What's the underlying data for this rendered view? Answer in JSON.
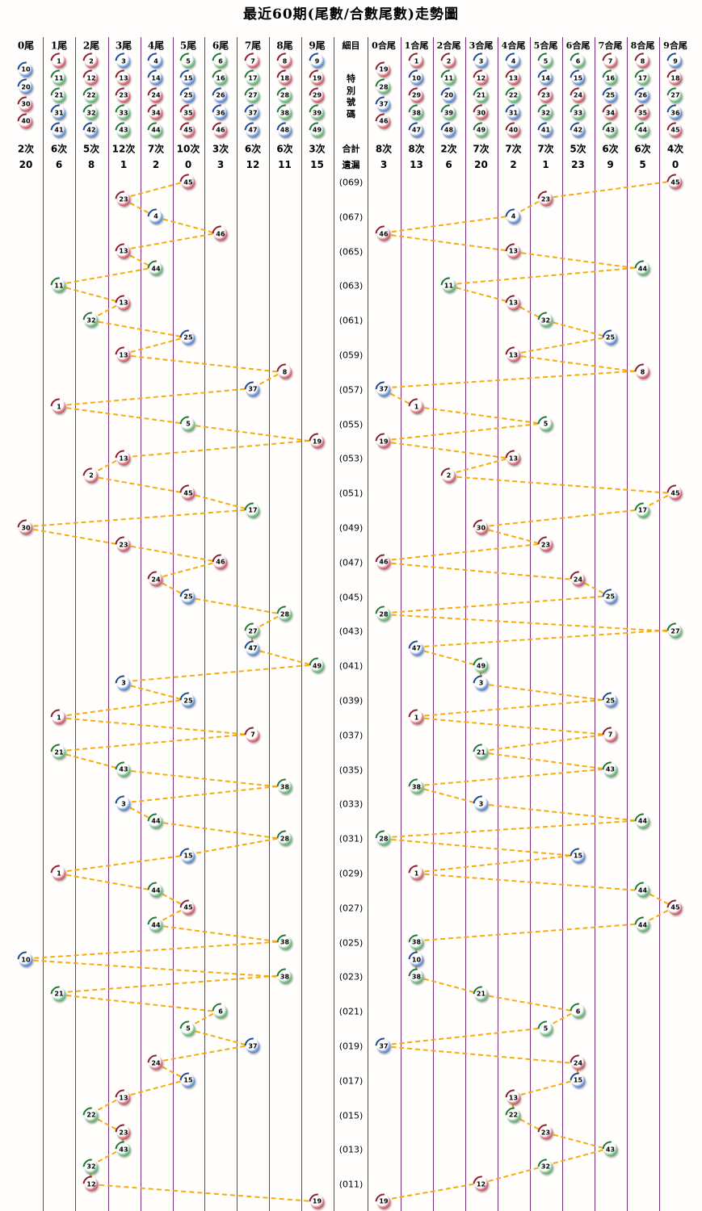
{
  "title": "最近60期(尾數/合數尾數)走勢圖",
  "middle_column": {
    "header": "細目",
    "special_number_label_chars": [
      "特",
      "別",
      "號",
      "碼"
    ],
    "total_label": "合計",
    "miss_label": "遺漏"
  },
  "left_section": {
    "headers": [
      "0尾",
      "1尾",
      "2尾",
      "3尾",
      "4尾",
      "5尾",
      "6尾",
      "7尾",
      "8尾",
      "9尾"
    ],
    "palette": [
      [
        10,
        20,
        30,
        40
      ],
      [
        1,
        11,
        21,
        31,
        41
      ],
      [
        2,
        12,
        22,
        32,
        42
      ],
      [
        3,
        13,
        23,
        33,
        43
      ],
      [
        4,
        14,
        24,
        34,
        44
      ],
      [
        5,
        15,
        25,
        35,
        45
      ],
      [
        6,
        16,
        26,
        36,
        46
      ],
      [
        7,
        17,
        27,
        37,
        47
      ],
      [
        8,
        18,
        28,
        38,
        48
      ],
      [
        9,
        19,
        29,
        39,
        49
      ]
    ],
    "counts": [
      "2次",
      "6次",
      "5次",
      "12次",
      "7次",
      "10次",
      "3次",
      "6次",
      "6次",
      "3次"
    ],
    "misses": [
      "20",
      "6",
      "8",
      "1",
      "2",
      "0",
      "3",
      "12",
      "11",
      "15"
    ]
  },
  "right_section": {
    "headers": [
      "0合尾",
      "1合尾",
      "2合尾",
      "3合尾",
      "4合尾",
      "5合尾",
      "6合尾",
      "7合尾",
      "8合尾",
      "9合尾"
    ],
    "palette": [
      [
        19,
        28,
        37,
        46
      ],
      [
        1,
        10,
        29,
        38,
        47
      ],
      [
        2,
        11,
        20,
        39,
        48
      ],
      [
        3,
        12,
        21,
        30,
        49
      ],
      [
        4,
        13,
        22,
        31,
        40
      ],
      [
        5,
        14,
        23,
        32,
        41
      ],
      [
        6,
        15,
        24,
        33,
        42
      ],
      [
        7,
        16,
        25,
        34,
        43
      ],
      [
        8,
        17,
        26,
        35,
        44
      ],
      [
        9,
        18,
        27,
        36,
        45
      ]
    ],
    "counts": [
      "8次",
      "8次",
      "2次",
      "7次",
      "7次",
      "7次",
      "5次",
      "6次",
      "6次",
      "4次"
    ],
    "misses": [
      "3",
      "13",
      "6",
      "20",
      "2",
      "1",
      "23",
      "9",
      "5",
      "0"
    ]
  },
  "ball_colors": {
    "red": [
      1,
      2,
      7,
      8,
      12,
      13,
      18,
      19,
      23,
      24,
      29,
      30,
      34,
      35,
      40,
      45,
      46
    ],
    "blue": [
      3,
      4,
      9,
      10,
      14,
      15,
      20,
      25,
      26,
      31,
      36,
      37,
      41,
      42,
      47,
      48
    ],
    "green": [
      5,
      6,
      11,
      16,
      17,
      21,
      22,
      27,
      28,
      32,
      33,
      38,
      39,
      43,
      44,
      49
    ]
  },
  "theme": {
    "red": "#b32e3e",
    "blue": "#2d62b8",
    "green": "#2f9a47",
    "connector_line": "#f5a800",
    "grid_line": "#7b3083",
    "background": "#fffefd",
    "text": "#000000"
  },
  "chart_data": {
    "type": "scatter",
    "title": "最近60期(尾數/合數尾數)走勢圖",
    "description": "Special-number trend for the last 60 draws, newest (period 069) at top, oldest (010) at bottom. Left half plots the number by its tail digit (0尾-9尾); right half plots it by the tail of its digit sum (0合尾-9合尾). Consecutive draws are joined by dashed lines. Row labels are shown for odd periods only, formatted like (069).",
    "left_axis_columns": [
      "0尾",
      "1尾",
      "2尾",
      "3尾",
      "4尾",
      "5尾",
      "6尾",
      "7尾",
      "8尾",
      "9尾"
    ],
    "right_axis_columns": [
      "0合尾",
      "1合尾",
      "2合尾",
      "3合尾",
      "4合尾",
      "5合尾",
      "6合尾",
      "7合尾",
      "8合尾",
      "9合尾"
    ],
    "draws": [
      [
        69,
        45
      ],
      [
        68,
        23
      ],
      [
        67,
        4
      ],
      [
        66,
        46
      ],
      [
        65,
        13
      ],
      [
        64,
        44
      ],
      [
        63,
        11
      ],
      [
        62,
        13
      ],
      [
        61,
        32
      ],
      [
        60,
        25
      ],
      [
        59,
        13
      ],
      [
        58,
        8
      ],
      [
        57,
        37
      ],
      [
        56,
        1
      ],
      [
        55,
        5
      ],
      [
        54,
        19
      ],
      [
        53,
        13
      ],
      [
        52,
        2
      ],
      [
        51,
        45
      ],
      [
        50,
        17
      ],
      [
        49,
        30
      ],
      [
        48,
        23
      ],
      [
        47,
        46
      ],
      [
        46,
        24
      ],
      [
        45,
        25
      ],
      [
        44,
        28
      ],
      [
        43,
        27
      ],
      [
        42,
        47
      ],
      [
        41,
        49
      ],
      [
        40,
        3
      ],
      [
        39,
        25
      ],
      [
        38,
        1
      ],
      [
        37,
        7
      ],
      [
        36,
        21
      ],
      [
        35,
        43
      ],
      [
        34,
        38
      ],
      [
        33,
        3
      ],
      [
        32,
        44
      ],
      [
        31,
        28
      ],
      [
        30,
        15
      ],
      [
        29,
        1
      ],
      [
        28,
        44
      ],
      [
        27,
        45
      ],
      [
        26,
        44
      ],
      [
        25,
        38
      ],
      [
        24,
        10
      ],
      [
        23,
        38
      ],
      [
        22,
        21
      ],
      [
        21,
        6
      ],
      [
        20,
        5
      ],
      [
        19,
        37
      ],
      [
        18,
        24
      ],
      [
        17,
        15
      ],
      [
        16,
        13
      ],
      [
        15,
        22
      ],
      [
        14,
        23
      ],
      [
        13,
        43
      ],
      [
        12,
        32
      ],
      [
        11,
        12
      ],
      [
        10,
        19
      ]
    ]
  }
}
